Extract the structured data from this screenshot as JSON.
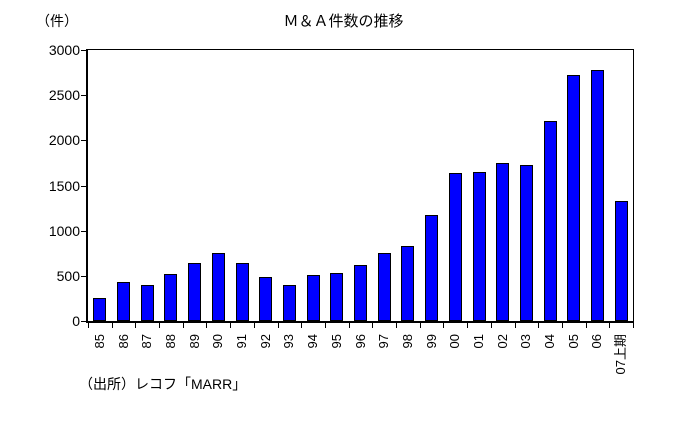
{
  "chart_data": {
    "type": "bar",
    "title": "Ｍ＆Ａ件数の推移",
    "unit_label": "（件）",
    "xlabel": "",
    "ylabel": "（件）",
    "source_note": "（出所）レコフ「MARR」",
    "categories": [
      "85",
      "86",
      "87",
      "88",
      "89",
      "90",
      "91",
      "92",
      "93",
      "94",
      "95",
      "96",
      "97",
      "98",
      "99",
      "00",
      "01",
      "02",
      "03",
      "04",
      "05",
      "06",
      "07上期"
    ],
    "values": [
      260,
      435,
      397,
      523,
      645,
      754,
      638,
      483,
      397,
      505,
      531,
      621,
      753,
      834,
      1169,
      1635,
      1653,
      1752,
      1728,
      2211,
      2725,
      2775,
      1331
    ],
    "ylim": [
      0,
      3000
    ],
    "ytick_step": 500,
    "ytick_labels": [
      "0",
      "500",
      "1000",
      "1500",
      "2000",
      "2500",
      "3000"
    ],
    "grid": false,
    "legend": false,
    "bar_color": "#0000ff",
    "bar_border_color": "#000000",
    "axis_color": "#000000",
    "background_color": "#ffffff"
  }
}
